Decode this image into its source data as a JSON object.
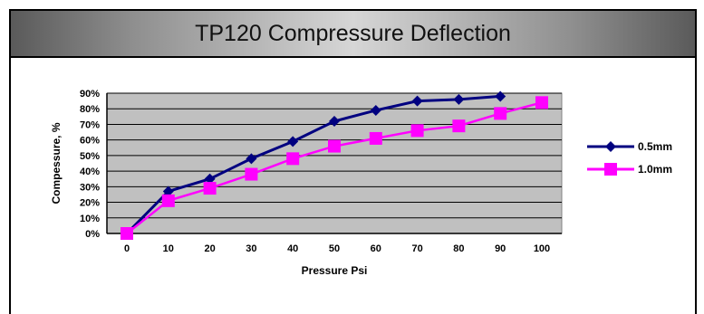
{
  "header": {
    "title": "TP120 Compressure Deflection"
  },
  "chart_data": {
    "type": "line",
    "title": "TP120 Compressure Deflection",
    "xlabel": "Pressure Psi",
    "ylabel": "Compessure, %",
    "x": [
      0,
      10,
      20,
      30,
      40,
      50,
      60,
      70,
      80,
      90,
      100
    ],
    "x_tick_labels": [
      "0",
      "10",
      "20",
      "30",
      "40",
      "50",
      "60",
      "70",
      "80",
      "90",
      "100"
    ],
    "y_tick_labels": [
      "0%",
      "10%",
      "20%",
      "30%",
      "40%",
      "50%",
      "60%",
      "70%",
      "80%",
      "90%"
    ],
    "ylim": [
      0,
      90
    ],
    "grid": true,
    "legend_position": "right",
    "plot_background": "#c0c0c0",
    "series": [
      {
        "name": "0.5mm",
        "color": "#000080",
        "marker": "diamond",
        "x": [
          0,
          10,
          20,
          30,
          40,
          50,
          60,
          70,
          80,
          90
        ],
        "values": [
          0,
          27,
          35,
          48,
          59,
          72,
          79,
          85,
          86,
          88
        ]
      },
      {
        "name": "1.0mm",
        "color": "#ff00ff",
        "marker": "square",
        "x": [
          0,
          10,
          20,
          30,
          40,
          50,
          60,
          70,
          80,
          90,
          100
        ],
        "values": [
          0,
          21,
          29,
          38,
          48,
          56,
          61,
          66,
          69,
          77,
          84
        ]
      }
    ]
  }
}
